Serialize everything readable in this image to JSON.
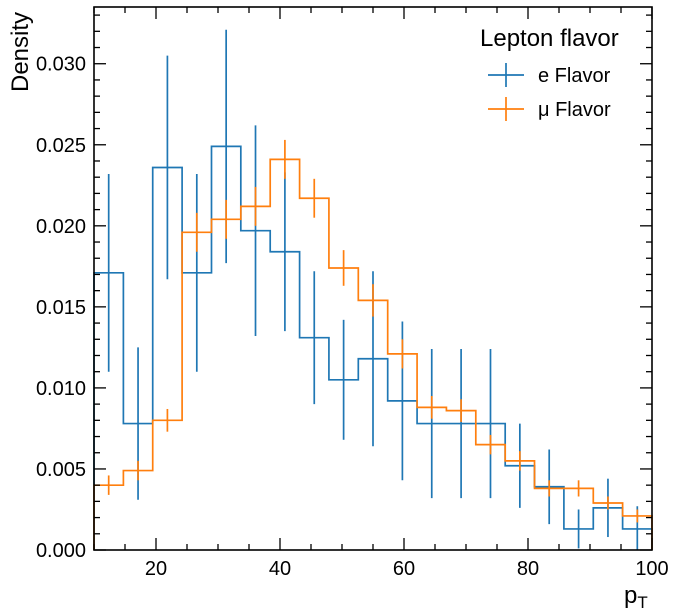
{
  "chart_data": {
    "type": "histogram",
    "title": "",
    "xlabel": "p",
    "xlabel_sub": "T",
    "ylabel": "Density",
    "xlim": [
      10,
      100
    ],
    "ylim": [
      0,
      0.0335
    ],
    "x_ticks": [
      20,
      40,
      60,
      80,
      100
    ],
    "x_minor_step": 5,
    "y_ticks": [
      0.0,
      0.005,
      0.01,
      0.015,
      0.02,
      0.025,
      0.03
    ],
    "y_tick_labels": [
      "0.000",
      "0.005",
      "0.010",
      "0.015",
      "0.020",
      "0.025",
      "0.030"
    ],
    "y_minor_step": 0.001,
    "grid": false,
    "legend": {
      "title": "Lepton flavor",
      "placement": "top-right"
    },
    "bin_edges": [
      10,
      14.74,
      19.47,
      24.21,
      28.95,
      33.68,
      38.42,
      43.16,
      47.89,
      52.63,
      57.37,
      62.11,
      66.84,
      71.58,
      76.32,
      81.05,
      85.79,
      90.53,
      95.26,
      100
    ],
    "series": [
      {
        "name": "e Flavor",
        "color": "#1f77b4",
        "values": [
          0.0171,
          0.0078,
          0.0236,
          0.0171,
          0.0249,
          0.0197,
          0.0184,
          0.0131,
          0.0105,
          0.0118,
          0.0092,
          0.0078,
          0.0078,
          0.0078,
          0.0052,
          0.0039,
          0.0013,
          0.0026,
          0.0013
        ],
        "errors": [
          0.0061,
          0.0047,
          0.0069,
          0.0061,
          0.0072,
          0.0065,
          0.0049,
          0.0041,
          0.0037,
          0.0054,
          0.0049,
          0.0046,
          0.0046,
          0.0046,
          0.0026,
          0.0023,
          0.0012,
          0.0018,
          0.0014
        ]
      },
      {
        "name": "μ Flavor",
        "color": "#ff7f0e",
        "values": [
          0.004,
          0.0049,
          0.008,
          0.0196,
          0.0204,
          0.0212,
          0.0241,
          0.0217,
          0.0174,
          0.0154,
          0.0121,
          0.0088,
          0.0086,
          0.0065,
          0.0055,
          0.0038,
          0.0038,
          0.0029,
          0.0021
        ],
        "errors": [
          0.0006,
          0.0006,
          0.0007,
          0.0012,
          0.0012,
          0.0012,
          0.0012,
          0.0012,
          0.0011,
          0.001,
          0.0009,
          0.0007,
          0.0007,
          0.0006,
          0.0006,
          0.0005,
          0.0005,
          0.0004,
          0.0004
        ]
      }
    ]
  }
}
